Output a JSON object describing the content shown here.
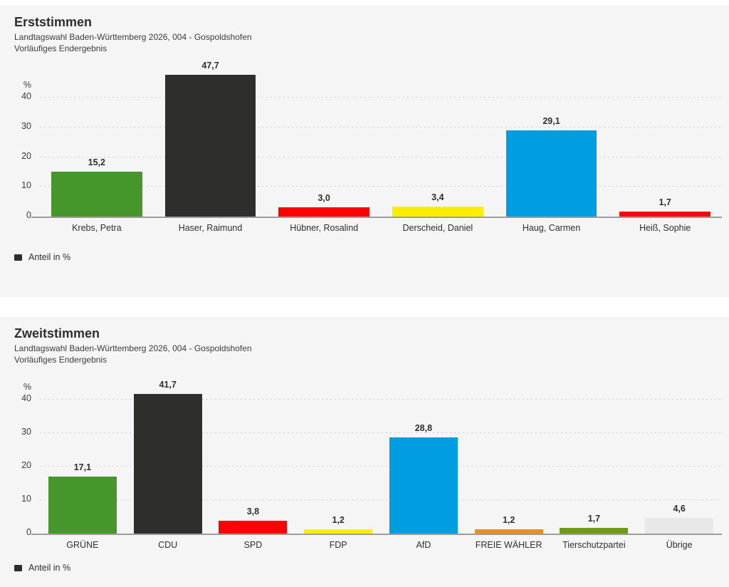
{
  "theme": {
    "page_bg": "#ffffff",
    "panel_bg": "#f5f5f5",
    "text_dark": "#2e2e2d",
    "text_subtitle": "#3c3c3b",
    "gridline": "#cfcfcd",
    "baseline": "#9d9d9c",
    "legend_swatch": "#2e2e2d"
  },
  "chart_data": [
    {
      "type": "bar",
      "title": "Erststimmen",
      "subtitle": "Landtagswahl Baden-Württemberg 2026, 004 - Gospoldshofen",
      "status_line": "Vorläufiges Endergebnis",
      "legend_label": "Anteil in %",
      "unit": "%",
      "ylabel": "%",
      "ylim": [
        0,
        48
      ],
      "axis_ticks": [
        0,
        10,
        20,
        30,
        40
      ],
      "grid": "dotted-horizontal",
      "legend_position": "bottom-left",
      "categories": [
        "Krebs, Petra",
        "Haser, Raimund",
        "Hübner, Rosalind",
        "Derscheid, Daniel",
        "Haug, Carmen",
        "Heiß, Sophie"
      ],
      "values": [
        15.2,
        47.7,
        3.0,
        3.4,
        29.1,
        1.7
      ],
      "value_labels": [
        "15,2",
        "47,7",
        "3,0",
        "3,4",
        "29,1",
        "1,7"
      ],
      "bar_colors": [
        "#46962b",
        "#2e2e2d",
        "#fe0000",
        "#ffed00",
        "#009ee0",
        "#fe0000"
      ]
    },
    {
      "type": "bar",
      "title": "Zweitstimmen",
      "subtitle": "Landtagswahl Baden-Württemberg 2026, 004 - Gospoldshofen",
      "status_line": "Vorläufiges Endergebnis",
      "legend_label": "Anteil in %",
      "unit": "%",
      "ylabel": "%",
      "ylim": [
        0,
        44
      ],
      "axis_ticks": [
        0,
        10,
        20,
        30,
        40
      ],
      "grid": "dotted-horizontal",
      "legend_position": "bottom-left",
      "categories": [
        "GRÜNE",
        "CDU",
        "SPD",
        "FDP",
        "AfD",
        "FREIE WÄHLER",
        "Tierschutzpartei",
        "Übrige"
      ],
      "values": [
        17.1,
        41.7,
        3.8,
        1.2,
        28.8,
        1.2,
        1.7,
        4.6
      ],
      "value_labels": [
        "17,1",
        "41,7",
        "3,8",
        "1,2",
        "28,8",
        "1,2",
        "1,7",
        "4,6"
      ],
      "bar_colors": [
        "#46962b",
        "#2e2e2d",
        "#fe0000",
        "#ffed00",
        "#009ee0",
        "#e8901d",
        "#6d9b13",
        "#e8e8e8"
      ]
    }
  ]
}
